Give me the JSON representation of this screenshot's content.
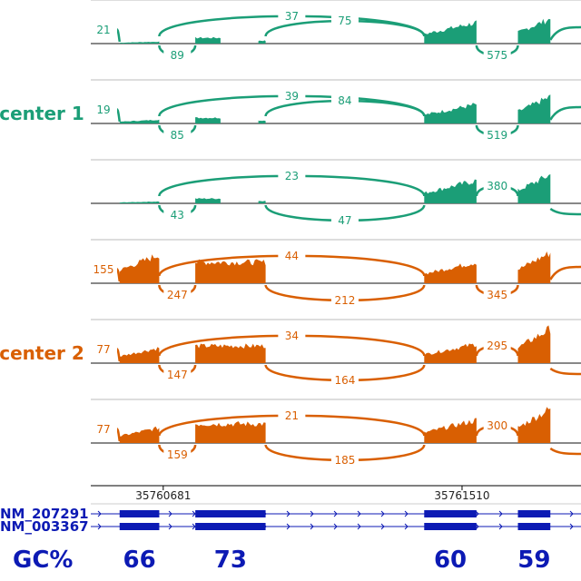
{
  "chart_data": {
    "type": "sashimi",
    "colors": {
      "center_1": "#1b9e77",
      "center_2": "#d95f02",
      "transcript": "#0c1ab4",
      "axis": "#000000"
    },
    "genomic_coordinates": {
      "start": 35760480,
      "end": 35761840
    },
    "exons": [
      {
        "start": 35760560,
        "end": 35760670
      },
      {
        "start": 35760770,
        "end": 35760965
      },
      {
        "start": 35761405,
        "end": 35761550
      },
      {
        "start": 35761665,
        "end": 35761755
      }
    ],
    "groups": [
      {
        "name": "center 1",
        "color_key": "center_1",
        "tracks": [
          0,
          1,
          2
        ]
      },
      {
        "name": "center 2",
        "color_key": "center_2",
        "tracks": [
          3,
          4,
          5
        ]
      }
    ],
    "tracks": [
      {
        "group": "center 1",
        "coverage": [
          2,
          6,
          2,
          22,
          8,
          26
        ],
        "junctions": [
          {
            "donor": "left",
            "acceptor": 35760560,
            "count": "21",
            "side": "above"
          },
          {
            "donor": 35760670,
            "acceptor": 35761405,
            "count": "37",
            "side": "above"
          },
          {
            "donor": 35760965,
            "acceptor": 35761405,
            "count": "75",
            "side": "above"
          },
          {
            "donor": 35760670,
            "acceptor": 35760770,
            "count": "89",
            "side": "below"
          },
          {
            "donor": 35761550,
            "acceptor": 35761665,
            "count": "575",
            "side": "below"
          },
          {
            "donor": 35761755,
            "acceptor": "right",
            "count": "",
            "side": "above"
          }
        ]
      },
      {
        "group": "center 1",
        "coverage": [
          4,
          6,
          2,
          20,
          10,
          28
        ],
        "junctions": [
          {
            "donor": "left",
            "acceptor": 35760560,
            "count": "19",
            "side": "above"
          },
          {
            "donor": 35760670,
            "acceptor": 35761405,
            "count": "39",
            "side": "above"
          },
          {
            "donor": 35760965,
            "acceptor": 35761405,
            "count": "84",
            "side": "above"
          },
          {
            "donor": 35760670,
            "acceptor": 35760770,
            "count": "85",
            "side": "below"
          },
          {
            "donor": 35761550,
            "acceptor": 35761665,
            "count": "519",
            "side": "below"
          },
          {
            "donor": 35761755,
            "acceptor": "right",
            "count": "",
            "side": "above"
          }
        ]
      },
      {
        "group": "center 1",
        "coverage": [
          2,
          5,
          3,
          24,
          10,
          30
        ],
        "junctions": [
          {
            "donor": 35760670,
            "acceptor": 35761405,
            "count": "23",
            "side": "above"
          },
          {
            "donor": 35760670,
            "acceptor": 35760770,
            "count": "43",
            "side": "below"
          },
          {
            "donor": 35760965,
            "acceptor": 35761405,
            "count": "47",
            "side": "below"
          },
          {
            "donor": 35761550,
            "acceptor": 35761665,
            "count": "380",
            "side": "above"
          },
          {
            "donor": 35761755,
            "acceptor": "right",
            "count": "",
            "side": "below"
          }
        ]
      },
      {
        "group": "center 2",
        "coverage": [
          30,
          22,
          0,
          22,
          26,
          32
        ],
        "junctions": [
          {
            "donor": "left",
            "acceptor": 35760560,
            "count": "155",
            "side": "above"
          },
          {
            "donor": 35760670,
            "acceptor": 35761405,
            "count": "44",
            "side": "above"
          },
          {
            "donor": 35760670,
            "acceptor": 35760770,
            "count": "247",
            "side": "below"
          },
          {
            "donor": 35760965,
            "acceptor": 35761405,
            "count": "212",
            "side": "below"
          },
          {
            "donor": 35761550,
            "acceptor": 35761665,
            "count": "345",
            "side": "below"
          },
          {
            "donor": 35761755,
            "acceptor": "right",
            "count": "",
            "side": "above"
          }
        ]
      },
      {
        "group": "center 2",
        "coverage": [
          16,
          18,
          0,
          20,
          24,
          36
        ],
        "junctions": [
          {
            "donor": "left",
            "acceptor": 35760560,
            "count": "77",
            "side": "above"
          },
          {
            "donor": 35760670,
            "acceptor": 35761405,
            "count": "34",
            "side": "above"
          },
          {
            "donor": 35760670,
            "acceptor": 35760770,
            "count": "147",
            "side": "below"
          },
          {
            "donor": 35760965,
            "acceptor": 35761405,
            "count": "164",
            "side": "below"
          },
          {
            "donor": 35761550,
            "acceptor": 35761665,
            "count": "295",
            "side": "above"
          },
          {
            "donor": 35761755,
            "acceptor": "right",
            "count": "",
            "side": "below"
          }
        ]
      },
      {
        "group": "center 2",
        "coverage": [
          16,
          20,
          0,
          24,
          20,
          36
        ],
        "junctions": [
          {
            "donor": "left",
            "acceptor": 35760560,
            "count": "77",
            "side": "above"
          },
          {
            "donor": 35760670,
            "acceptor": 35761405,
            "count": "21",
            "side": "above"
          },
          {
            "donor": 35760670,
            "acceptor": 35760770,
            "count": "159",
            "side": "below"
          },
          {
            "donor": 35760965,
            "acceptor": 35761405,
            "count": "185",
            "side": "below"
          },
          {
            "donor": 35761550,
            "acceptor": 35761665,
            "count": "300",
            "side": "above"
          },
          {
            "donor": 35761755,
            "acceptor": "right",
            "count": "",
            "side": "below"
          }
        ]
      }
    ],
    "small_fragments": [
      {
        "start": 35760770,
        "end": 35760840
      },
      {
        "start": 35760945,
        "end": 35760965
      }
    ],
    "axis_ticks": [
      {
        "position": 35760681,
        "label": "35760681"
      },
      {
        "position": 35761510,
        "label": "35761510"
      }
    ],
    "transcripts": [
      {
        "name": "NM_207291",
        "exons": [
          0,
          1,
          2,
          3
        ]
      },
      {
        "name": "NM_003367",
        "exons": [
          0,
          1,
          2,
          3
        ]
      }
    ],
    "gc_content": {
      "label": "GC%",
      "values": [
        {
          "exon": 0,
          "value": "66"
        },
        {
          "exon": 1,
          "value": "73"
        },
        {
          "exon": 2,
          "value": "60"
        },
        {
          "exon": 3,
          "value": "59"
        }
      ]
    }
  }
}
